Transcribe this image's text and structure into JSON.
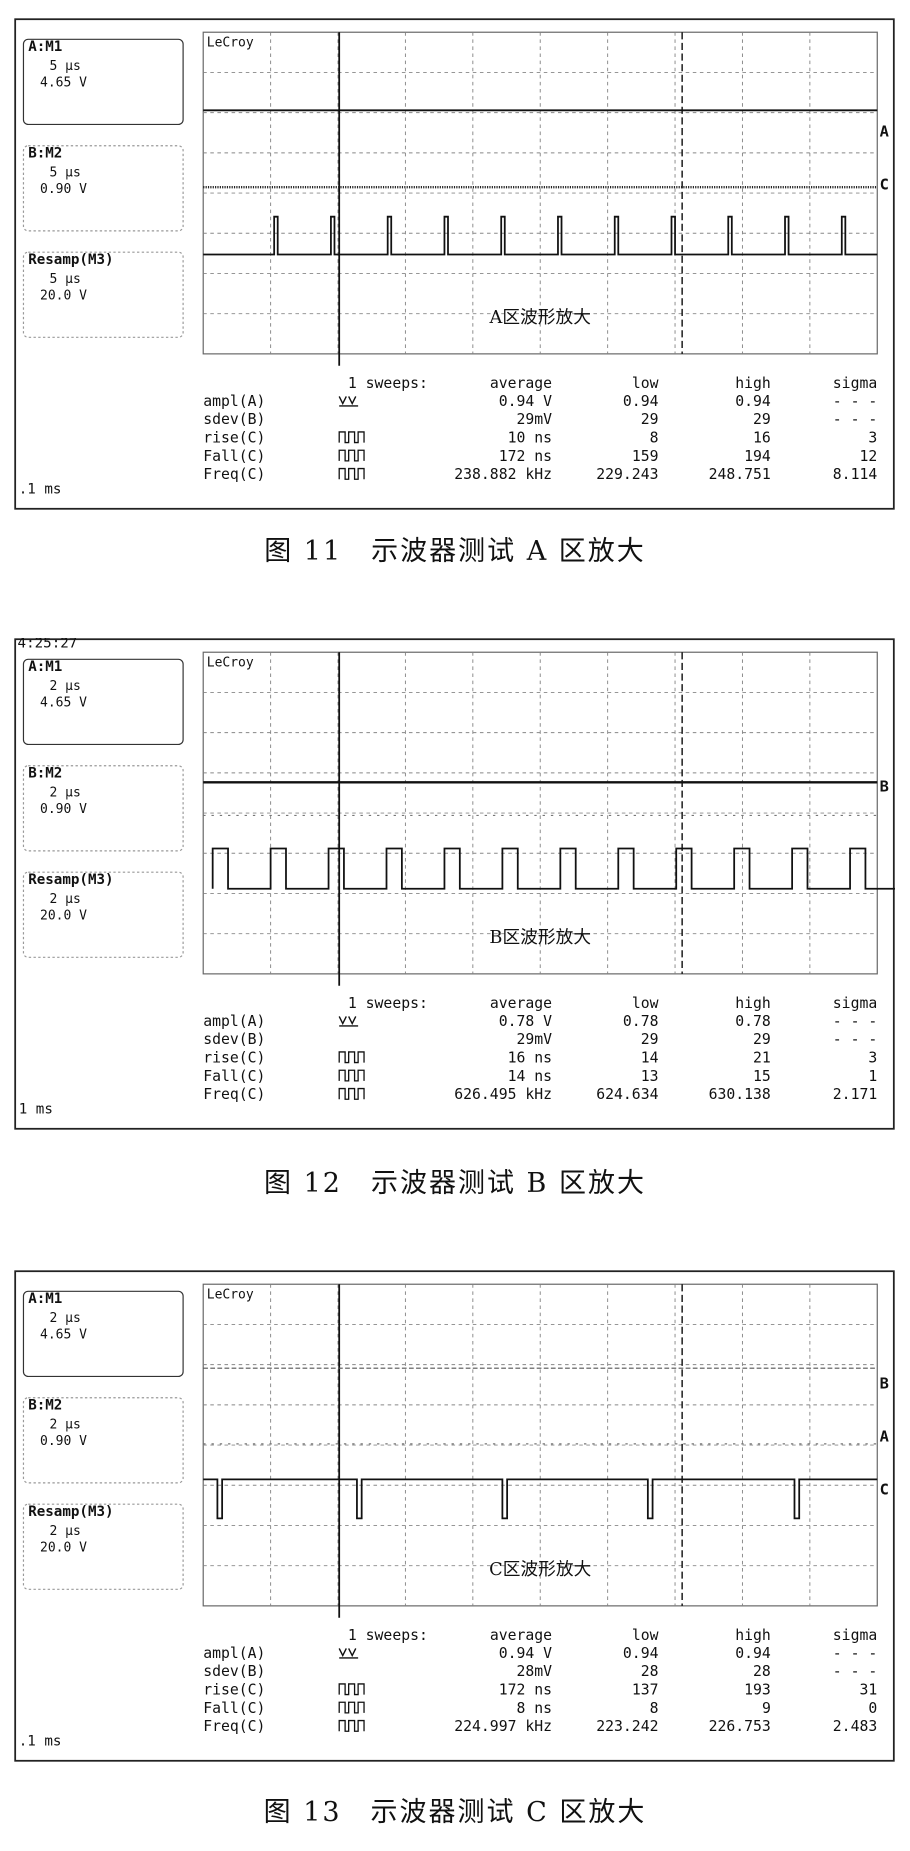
{
  "figures": [
    {
      "channels": [
        {
          "title": "A:M1",
          "timebase": "5 μs",
          "volts": "4.65 V"
        },
        {
          "title": "B:M2",
          "timebase": "5 μs",
          "volts": "0.90 V"
        },
        {
          "title": "Resamp(M3)",
          "timebase": "5 μs",
          "volts": "20.0 V"
        }
      ],
      "watermark": "LeCroy",
      "annotation": "A区波形放大",
      "timebase_label": ".1 ms",
      "markers": [
        "A",
        "C"
      ],
      "measurements": {
        "header": [
          "1 sweeps:",
          "average",
          "low",
          "high",
          "sigma"
        ],
        "rows": [
          [
            "ampl(A)",
            "0.94 V",
            "0.94",
            "0.94",
            "- - -"
          ],
          [
            "sdev(B)",
            "29mV",
            "29",
            "29",
            "- - -"
          ],
          [
            "rise(C)",
            "10 ns",
            "8",
            "16",
            "3"
          ],
          [
            "Fall(C)",
            "172 ns",
            "159",
            "194",
            "12"
          ],
          [
            "Freq(C)",
            "238.882 kHz",
            "229.243",
            "248.751",
            "8.114"
          ]
        ]
      },
      "caption": "图 11　示波器测试 A 区放大"
    },
    {
      "time": "4:25:27",
      "channels": [
        {
          "title": "A:M1",
          "timebase": "2 μs",
          "volts": "4.65 V"
        },
        {
          "title": "B:M2",
          "timebase": "2 μs",
          "volts": "0.90 V"
        },
        {
          "title": "Resamp(M3)",
          "timebase": "2 μs",
          "volts": "20.0 V"
        }
      ],
      "watermark": "LeCroy",
      "annotation": "B区波形放大",
      "timebase_label": "1 ms",
      "markers": [
        "B"
      ],
      "measurements": {
        "header": [
          "1 sweeps:",
          "average",
          "low",
          "high",
          "sigma"
        ],
        "rows": [
          [
            "ampl(A)",
            "0.78 V",
            "0.78",
            "0.78",
            "- - -"
          ],
          [
            "sdev(B)",
            "29mV",
            "29",
            "29",
            "- - -"
          ],
          [
            "rise(C)",
            "16 ns",
            "14",
            "21",
            "3"
          ],
          [
            "Fall(C)",
            "14 ns",
            "13",
            "15",
            "1"
          ],
          [
            "Freq(C)",
            "626.495 kHz",
            "624.634",
            "630.138",
            "2.171"
          ]
        ]
      },
      "caption": "图 12　示波器测试 B 区放大"
    },
    {
      "channels": [
        {
          "title": "A:M1",
          "timebase": "2 μs",
          "volts": "4.65 V"
        },
        {
          "title": "B:M2",
          "timebase": "2 μs",
          "volts": "0.90 V"
        },
        {
          "title": "Resamp(M3)",
          "timebase": "2 μs",
          "volts": "20.0 V"
        }
      ],
      "watermark": "LeCroy",
      "annotation": "C区波形放大",
      "timebase_label": ".1 ms",
      "markers": [
        "B",
        "A",
        "C"
      ],
      "measurements": {
        "header": [
          "1 sweeps:",
          "average",
          "low",
          "high",
          "sigma"
        ],
        "rows": [
          [
            "ampl(A)",
            "0.94 V",
            "0.94",
            "0.94",
            "- - -"
          ],
          [
            "sdev(B)",
            "28mV",
            "28",
            "28",
            "- - -"
          ],
          [
            "rise(C)",
            "172 ns",
            "137",
            "193",
            "31"
          ],
          [
            "Fall(C)",
            "8 ns",
            "8",
            "9",
            "0"
          ],
          [
            "Freq(C)",
            "224.997 kHz",
            "223.242",
            "226.753",
            "2.483"
          ]
        ]
      },
      "caption": "图 13　示波器测试 C 区放大"
    }
  ]
}
